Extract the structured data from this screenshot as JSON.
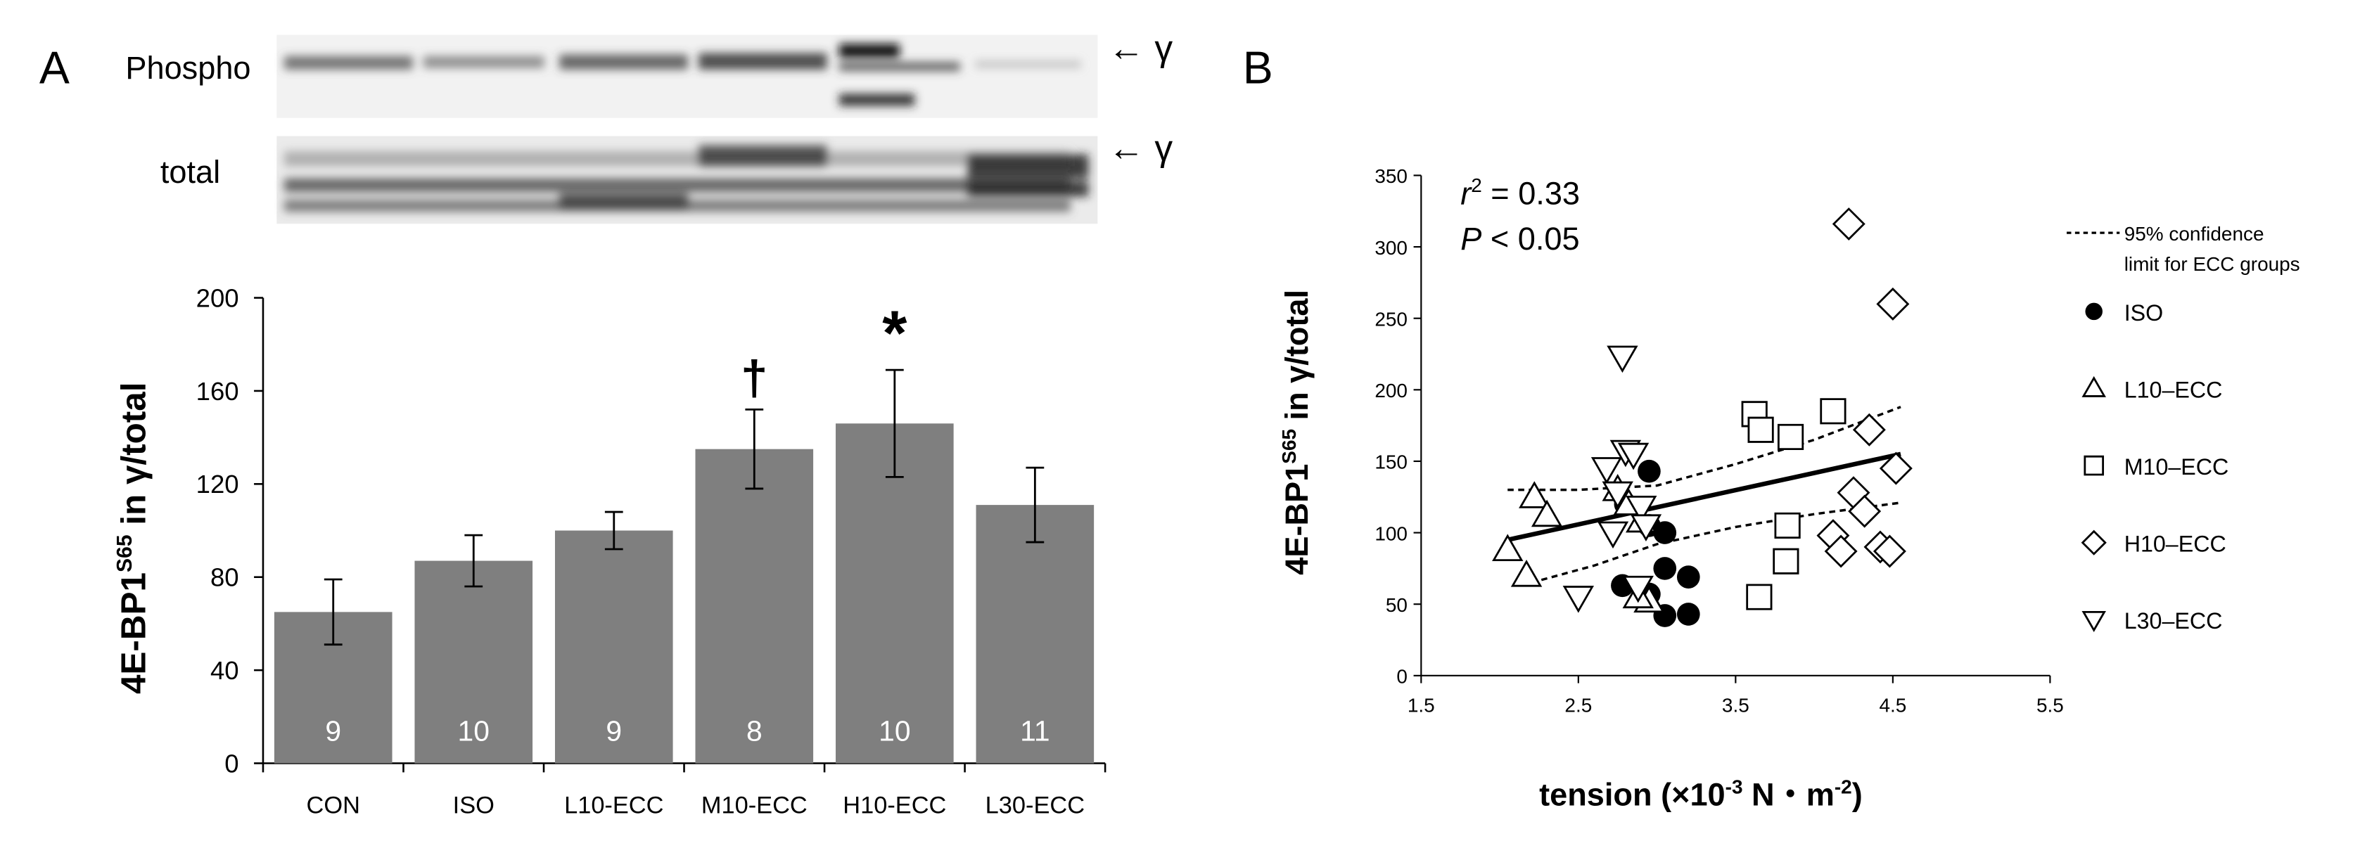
{
  "figure": {
    "panel_a_label": "A",
    "panel_b_label": "B"
  },
  "blot": {
    "phospho_label": "Phospho",
    "total_label": "total",
    "band_marker": "← γ"
  },
  "chart_data": [
    {
      "type": "bar",
      "panel": "A",
      "title": "",
      "xlabel": "",
      "ylabel": "4E-BP1 S65 in γ/total",
      "ylabel_main": "4E-BP1",
      "ylabel_sup": "S65",
      "ylabel_rest": " in γ/total",
      "ylim": [
        0,
        200
      ],
      "yticks": [
        0,
        40,
        80,
        120,
        160,
        200
      ],
      "categories": [
        "CON",
        "ISO",
        "L10-ECC",
        "M10-ECC",
        "H10-ECC",
        "L30-ECC"
      ],
      "values": [
        65,
        87,
        100,
        135,
        146,
        111
      ],
      "errors": [
        14,
        11,
        8,
        17,
        23,
        16
      ],
      "n_labels": [
        "9",
        "10",
        "9",
        "8",
        "10",
        "11"
      ],
      "significance": [
        "",
        "",
        "",
        "†",
        "*",
        ""
      ],
      "bar_color": "#7f7f7f"
    },
    {
      "type": "scatter",
      "panel": "B",
      "title": "",
      "xlabel": "tension (×10⁻³ N・m⁻²)",
      "xlabel_main": "tension (×10",
      "xlabel_sup1": "-3",
      "xlabel_mid": " N・m",
      "xlabel_sup2": "-2",
      "xlabel_end": ")",
      "ylabel": "4E-BP1 S65 in γ/total",
      "ylabel_main": "4E-BP1",
      "ylabel_sup": "S65",
      "ylabel_rest": " in γ/total",
      "xlim": [
        1.5,
        5.5
      ],
      "ylim": [
        0,
        350
      ],
      "xticks": [
        "1.5",
        "2.5",
        "3.5",
        "4.5",
        "5.5"
      ],
      "yticks": [
        0,
        50,
        100,
        150,
        200,
        250,
        300,
        350
      ],
      "stats": {
        "r2_prefix": "r",
        "r2_sup": "2",
        "r2_rest": " = 0.33",
        "p_prefix": "P",
        "p_rest": " < 0.05"
      },
      "regression": {
        "x": [
          2.05,
          4.55
        ],
        "y": [
          95,
          155
        ]
      },
      "ci_upper": {
        "x": [
          2.05,
          2.5,
          3.0,
          3.5,
          4.0,
          4.55
        ],
        "y": [
          130,
          130,
          133,
          148,
          165,
          188
        ]
      },
      "ci_lower": {
        "x": [
          2.2,
          2.6,
          3.0,
          3.5,
          4.0,
          4.55
        ],
        "y": [
          65,
          77,
          92,
          104,
          113,
          121
        ]
      },
      "legend": {
        "ci_line1": "95% confidence",
        "ci_line2": "limit for ECC groups"
      },
      "series": [
        {
          "name": "ISO",
          "marker": "circle",
          "x": [
            2.95,
            2.8,
            3.05,
            2.95,
            3.05,
            2.78,
            2.95,
            3.2,
            3.05,
            3.2
          ],
          "y": [
            143,
            120,
            100,
            105,
            75,
            63,
            57,
            69,
            42,
            43
          ]
        },
        {
          "name": "L10–ECC",
          "marker": "triangle-up",
          "x": [
            2.22,
            2.3,
            2.05,
            2.17,
            2.9,
            2.75,
            2.82,
            2.95,
            2.88
          ],
          "y": [
            125,
            112,
            88,
            70,
            108,
            130,
            120,
            52,
            55
          ]
        },
        {
          "name": "M10–ECC",
          "marker": "square",
          "x": [
            3.62,
            3.66,
            3.85,
            4.12,
            3.83,
            3.82,
            3.65
          ],
          "y": [
            183,
            172,
            167,
            185,
            105,
            80,
            55
          ]
        },
        {
          "name": "H10–ECC",
          "marker": "diamond",
          "x": [
            4.22,
            4.5,
            4.35,
            4.52,
            4.25,
            4.32,
            4.12,
            4.17,
            4.42,
            4.48
          ],
          "y": [
            316,
            260,
            172,
            145,
            128,
            115,
            98,
            87,
            90,
            87
          ]
        },
        {
          "name": "L30–ECC",
          "marker": "triangle-down",
          "x": [
            2.78,
            2.68,
            2.8,
            2.85,
            2.75,
            2.9,
            2.93,
            2.72,
            2.88,
            2.5
          ],
          "y": [
            223,
            145,
            157,
            155,
            128,
            118,
            105,
            100,
            62,
            55
          ]
        }
      ]
    }
  ]
}
